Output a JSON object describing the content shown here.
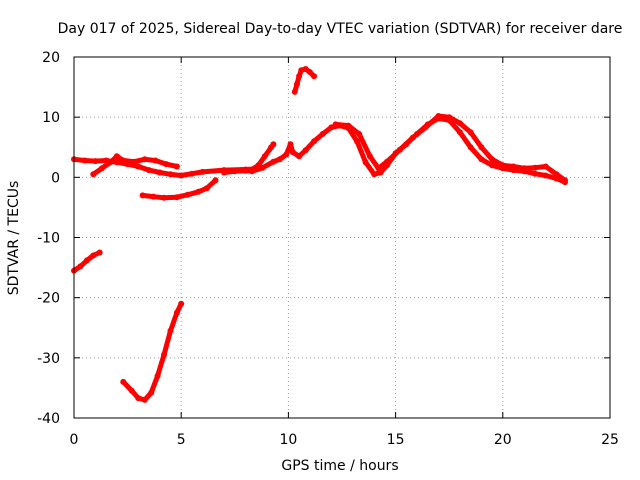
{
  "chart_data": {
    "type": "scatter",
    "title": "Day 017 of 2025, Sidereal Day-to-day VTEC variation (SDTVAR) for receiver dare",
    "xlabel": "GPS time / hours",
    "ylabel": "SDTVAR / TECUs",
    "xlim": [
      0,
      25
    ],
    "ylim": [
      -40,
      20
    ],
    "xticks": [
      0,
      5,
      10,
      15,
      20,
      25
    ],
    "yticks": [
      -40,
      -30,
      -20,
      -10,
      0,
      10,
      20
    ],
    "xtick_labels": [
      "0",
      "5",
      "10",
      "15",
      "20",
      "25"
    ],
    "ytick_labels": [
      "-40",
      "-30",
      "-20",
      "-10",
      "0",
      "10",
      "20"
    ],
    "grid": true,
    "series_color": "#ff0000",
    "series": [
      {
        "name": "s1",
        "points": [
          [
            0,
            -15.5
          ],
          [
            0.3,
            -14.8
          ],
          [
            0.6,
            -13.8
          ],
          [
            0.9,
            -13.0
          ],
          [
            1.2,
            -12.5
          ]
        ]
      },
      {
        "name": "s2",
        "points": [
          [
            0,
            3.0
          ],
          [
            0.5,
            2.8
          ],
          [
            1.0,
            2.7
          ],
          [
            1.5,
            2.8
          ],
          [
            2.0,
            2.5
          ],
          [
            2.5,
            2.2
          ],
          [
            3.0,
            1.8
          ],
          [
            3.5,
            1.2
          ],
          [
            4.0,
            0.8
          ],
          [
            4.5,
            0.5
          ],
          [
            5.0,
            0.3
          ],
          [
            5.5,
            0.6
          ],
          [
            6.0,
            0.9
          ],
          [
            7.0,
            1.2
          ],
          [
            8.0,
            1.3
          ],
          [
            8.6,
            1.4
          ]
        ]
      },
      {
        "name": "s3",
        "points": [
          [
            0.9,
            0.5
          ],
          [
            1.3,
            1.5
          ],
          [
            1.7,
            2.5
          ],
          [
            2.0,
            3.5
          ],
          [
            2.3,
            2.8
          ],
          [
            2.8,
            2.6
          ],
          [
            3.3,
            3.0
          ],
          [
            3.8,
            2.8
          ],
          [
            4.3,
            2.2
          ],
          [
            4.8,
            1.8
          ]
        ]
      },
      {
        "name": "s4",
        "points": [
          [
            2.3,
            -34.0
          ],
          [
            2.7,
            -35.5
          ],
          [
            3.0,
            -36.7
          ],
          [
            3.3,
            -37.0
          ],
          [
            3.6,
            -35.8
          ],
          [
            3.9,
            -33.0
          ],
          [
            4.2,
            -29.5
          ],
          [
            4.5,
            -25.5
          ],
          [
            4.8,
            -22.5
          ],
          [
            5.0,
            -21.0
          ]
        ]
      },
      {
        "name": "s5",
        "points": [
          [
            3.2,
            -3.0
          ],
          [
            3.7,
            -3.2
          ],
          [
            4.2,
            -3.4
          ],
          [
            4.8,
            -3.3
          ],
          [
            5.3,
            -2.9
          ],
          [
            5.8,
            -2.4
          ],
          [
            6.2,
            -1.8
          ],
          [
            6.6,
            -0.5
          ]
        ]
      },
      {
        "name": "s6",
        "points": [
          [
            7.0,
            0.8
          ],
          [
            7.5,
            1.0
          ],
          [
            8.0,
            1.1
          ],
          [
            8.3,
            1.3
          ],
          [
            8.6,
            2.0
          ],
          [
            8.9,
            3.5
          ],
          [
            9.2,
            5.0
          ],
          [
            9.3,
            5.5
          ]
        ]
      },
      {
        "name": "s7",
        "points": [
          [
            7.8,
            1.2
          ],
          [
            8.3,
            1.0
          ],
          [
            8.8,
            1.6
          ],
          [
            9.3,
            2.6
          ],
          [
            9.6,
            3.0
          ],
          [
            9.9,
            3.8
          ],
          [
            10.1,
            5.5
          ],
          [
            10.2,
            4.2
          ],
          [
            10.5,
            3.5
          ],
          [
            10.8,
            4.5
          ],
          [
            11.2,
            6.0
          ],
          [
            11.6,
            7.2
          ],
          [
            12.0,
            8.3
          ],
          [
            12.4,
            8.6
          ],
          [
            12.8,
            8.2
          ],
          [
            13.2,
            6.0
          ],
          [
            13.6,
            2.5
          ],
          [
            14.0,
            0.5
          ],
          [
            14.3,
            0.8
          ],
          [
            14.6,
            2.0
          ],
          [
            15.0,
            4.0
          ],
          [
            15.5,
            5.5
          ],
          [
            16.0,
            7.2
          ],
          [
            16.5,
            8.8
          ],
          [
            17.0,
            9.8
          ],
          [
            17.5,
            9.5
          ],
          [
            18.0,
            7.5
          ],
          [
            18.5,
            5.0
          ],
          [
            19.0,
            3.0
          ],
          [
            19.5,
            2.0
          ],
          [
            20.0,
            1.5
          ],
          [
            20.5,
            1.2
          ],
          [
            21.0,
            1.0
          ],
          [
            21.5,
            0.6
          ],
          [
            22.0,
            0.3
          ],
          [
            22.5,
            -0.2
          ],
          [
            22.9,
            -0.8
          ]
        ]
      },
      {
        "name": "s8",
        "points": [
          [
            12.2,
            8.8
          ],
          [
            12.8,
            8.6
          ],
          [
            13.3,
            7.2
          ],
          [
            13.8,
            3.5
          ],
          [
            14.2,
            1.5
          ],
          [
            14.6,
            2.6
          ],
          [
            15.2,
            4.6
          ],
          [
            15.8,
            6.6
          ],
          [
            16.4,
            8.3
          ],
          [
            17.0,
            10.2
          ],
          [
            17.5,
            10.0
          ],
          [
            18.0,
            9.0
          ],
          [
            18.5,
            7.5
          ],
          [
            19.0,
            5.0
          ],
          [
            19.5,
            3.0
          ],
          [
            20.0,
            2.0
          ],
          [
            20.5,
            1.8
          ],
          [
            21.0,
            1.5
          ],
          [
            21.5,
            1.6
          ],
          [
            22.0,
            1.8
          ],
          [
            22.5,
            0.5
          ],
          [
            22.9,
            -0.5
          ]
        ]
      },
      {
        "name": "s9",
        "points": [
          [
            10.3,
            14.2
          ],
          [
            10.4,
            15.5
          ],
          [
            10.5,
            16.8
          ],
          [
            10.6,
            17.8
          ],
          [
            10.8,
            18.0
          ],
          [
            11.0,
            17.5
          ],
          [
            11.2,
            16.8
          ]
        ]
      }
    ]
  }
}
